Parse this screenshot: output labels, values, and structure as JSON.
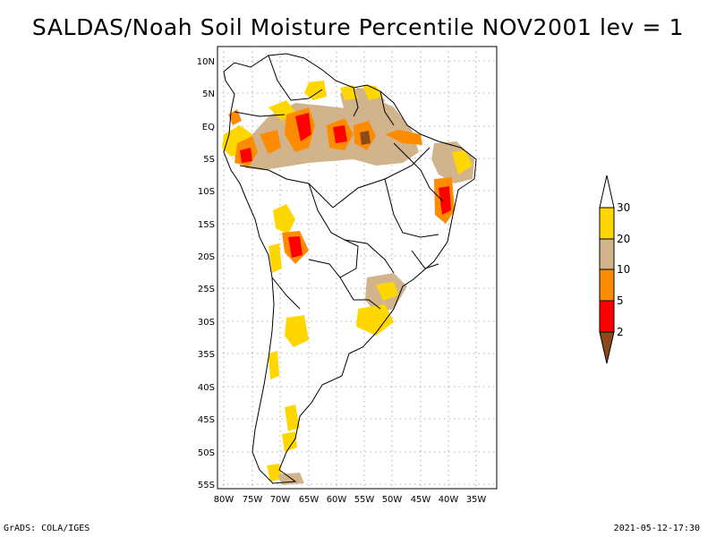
{
  "title": "SALDAS/Noah Soil Moisture Percentile NOV2001 lev = 1",
  "footer": {
    "left": "GrADS: COLA/IGES",
    "right": "2021-05-12-17:30"
  },
  "map": {
    "lat_labels": [
      "10N",
      "5N",
      "EQ",
      "5S",
      "10S",
      "15S",
      "20S",
      "25S",
      "30S",
      "35S",
      "40S",
      "45S",
      "50S",
      "55S"
    ],
    "lon_labels": [
      "80W",
      "75W",
      "70W",
      "65W",
      "60W",
      "55W",
      "50W",
      "45W",
      "40W",
      "35W"
    ],
    "gridlines": "dotted",
    "lat_range": [
      -56,
      12
    ],
    "lon_range": [
      -81,
      -33
    ]
  },
  "colorbar": {
    "labels": [
      "2",
      "5",
      "10",
      "20",
      "30"
    ],
    "colors": {
      "lt2": "#8c4a19",
      "2to5": "#ff0000",
      "5to10": "#ff8c00",
      "10to20": "#d2b48c",
      "20to30": "#ffd700",
      "gt30": "#ffffff"
    }
  }
}
